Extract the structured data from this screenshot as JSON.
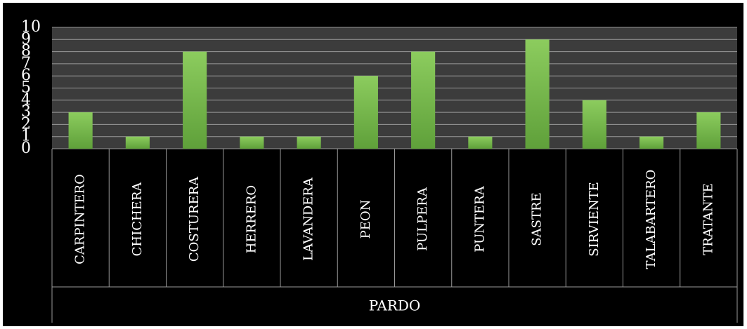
{
  "chart_data": {
    "type": "bar",
    "categories": [
      "CARPINTERO",
      "CHICHERA",
      "COSTURERA",
      "HERRERO",
      "LAVANDERA",
      "PEON",
      "PULPERA",
      "PUNTERA",
      "SASTRE",
      "SIRVIENTE",
      "TALABARTERO",
      "TRATANTE"
    ],
    "series": [
      {
        "values": [
          3,
          1,
          8,
          1,
          1,
          6,
          8,
          1,
          9,
          4,
          1,
          3
        ]
      }
    ],
    "group_label": "PARDO",
    "ylim": [
      0,
      10
    ],
    "yticks": [
      "0",
      "1",
      "2",
      "3",
      "4",
      "5",
      "6",
      "7",
      "8",
      "9",
      "10"
    ],
    "grid": true,
    "legend": "none",
    "colors": {
      "background": "#000000",
      "plot_area": "#3c3c3c",
      "bar_top": "#8ccc5e",
      "bar_bottom": "#5fa03a",
      "gridline": "#9a9a9a",
      "text": "#ffffff"
    }
  }
}
